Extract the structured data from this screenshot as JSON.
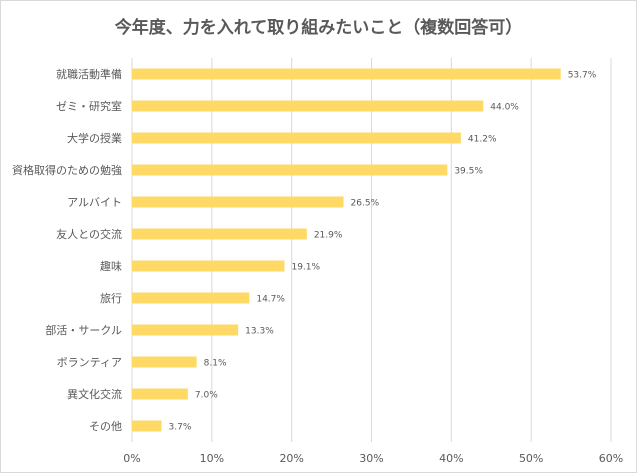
{
  "chart_data": {
    "type": "bar",
    "orientation": "horizontal",
    "title": "今年度、力を入れて取り組みたいこと（複数回答可）",
    "categories": [
      "就職活動準備",
      "ゼミ・研究室",
      "大学の授業",
      "資格取得のための勉強",
      "アルバイト",
      "友人との交流",
      "趣味",
      "旅行",
      "部活・サークル",
      "ボランティア",
      "異文化交流",
      "その他"
    ],
    "values": [
      53.7,
      44.0,
      41.2,
      39.5,
      26.5,
      21.9,
      19.1,
      14.7,
      13.3,
      8.1,
      7.0,
      3.7
    ],
    "value_labels": [
      "53.7%",
      "44.0%",
      "41.2%",
      "39.5%",
      "26.5%",
      "21.9%",
      "19.1%",
      "14.7%",
      "13.3%",
      "8.1%",
      "7.0%",
      "3.7%"
    ],
    "xlim": [
      0,
      60
    ],
    "x_ticks": [
      0,
      10,
      20,
      30,
      40,
      50,
      60
    ],
    "x_tick_labels": [
      "0%",
      "10%",
      "20%",
      "30%",
      "40%",
      "50%",
      "60%"
    ],
    "grid": true,
    "legend": "none",
    "colors": {
      "bar": "#FFD966",
      "grid": "#d9d9d9",
      "text": "#595959"
    }
  }
}
